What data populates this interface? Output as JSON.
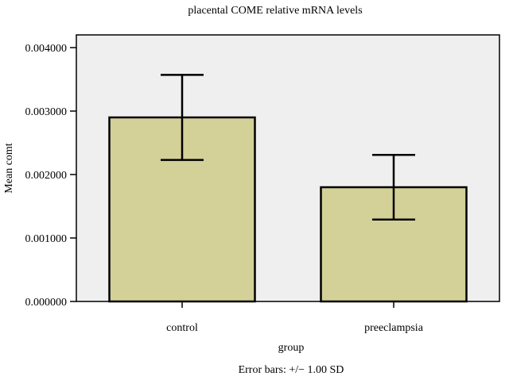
{
  "chart_data": {
    "type": "bar",
    "title": "placental COME relative mRNA levels",
    "xlabel": "group",
    "ylabel": "Mean comt",
    "footnote": "Error bars: +/− 1.00 SD",
    "categories": [
      "control",
      "preeclampsia"
    ],
    "values": [
      0.0029,
      0.0018
    ],
    "error_sd": [
      0.00067,
      0.00051
    ],
    "ylim": [
      0,
      0.004
    ],
    "yticks": [
      0.0,
      0.001,
      0.002,
      0.003,
      0.004
    ],
    "ytick_labels": [
      "0.000000",
      "0.001000",
      "0.002000",
      "0.003000",
      "0.004000"
    ],
    "grid": false,
    "colors": {
      "bar_fill": "#d3d098",
      "plot_background": "#efefef",
      "stroke": "#000000"
    }
  }
}
